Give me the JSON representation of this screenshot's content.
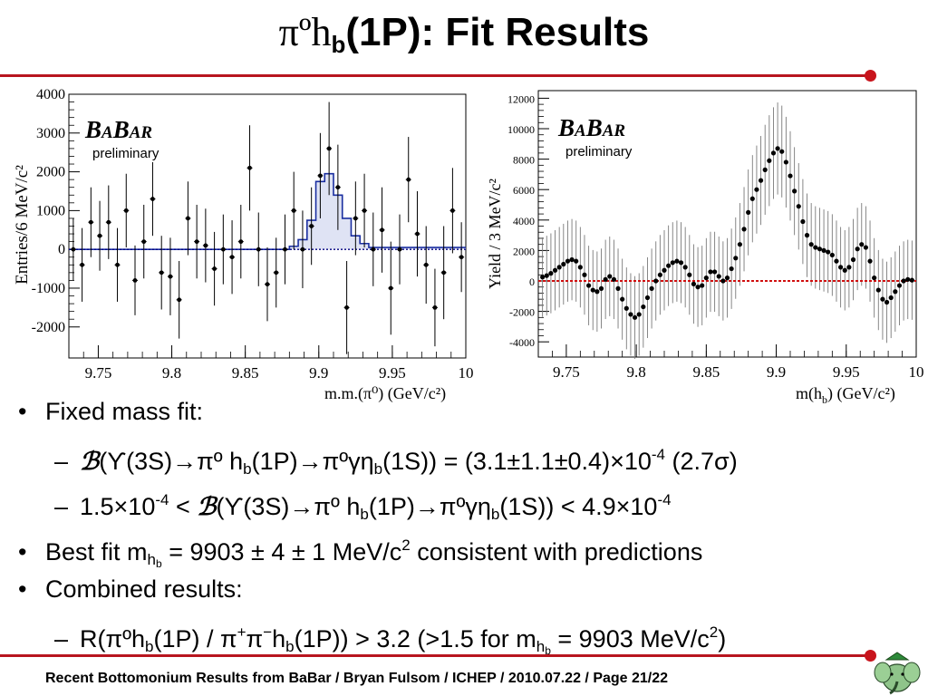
{
  "slide": {
    "title_prefix": "πºh",
    "title_sub": "b",
    "title_suffix": "(1P): Fit Results",
    "footer": "Recent Bottomonium Results from BaBar /  Bryan Fulsom  /  ICHEP  /  2010.07.22  /  Page 21/22",
    "accent_color": "#b8151e"
  },
  "bullets": [
    {
      "level": 1,
      "marker": "•",
      "text": "Fixed mass fit:"
    },
    {
      "level": 2,
      "marker": "–",
      "t1": "(ϒ(3S)",
      "arrow1": "→",
      "t2": "πº h",
      "s1": "b",
      "t3": "(1P)",
      "arrow2": "→",
      "t4": "πºγη",
      "s2": "b",
      "t5": "(1S)) = (3.1±1.1±0.4)×10",
      "sup1": "-4",
      "t6": " (2.7σ)",
      "brand": "ℬ"
    },
    {
      "level": 2,
      "marker": "–",
      "t1": "1.5×10",
      "sup1": "-4",
      "t2": " < ",
      "brand": "ℬ",
      "t3": "(ϒ(3S)",
      "arrow1": "→",
      "t4": "πº h",
      "s1": "b",
      "t5": "(1P)",
      "arrow2": "→",
      "t6": "πºγη",
      "s2": "b",
      "t7": "(1S)) < 4.9×10",
      "sup2": "-4"
    },
    {
      "level": 1,
      "marker": "•",
      "t1": "Best fit m",
      "s1": "h",
      "s1b": "b",
      "t2": " = 9903 ± 4 ± 1 MeV/c",
      "sup1": "2",
      "t3": " consistent with predictions"
    },
    {
      "level": 1,
      "marker": "•",
      "text": "Combined results:"
    },
    {
      "level": 2,
      "marker": "–",
      "t1": "R(πºh",
      "s1": "b",
      "t2": "(1P) / π",
      "sup1": "+",
      "t3": "π",
      "sup2": "−",
      "t4": "h",
      "s2": "b",
      "t5": "(1P)) > 3.2   (>1.5 for m",
      "s3": "h",
      "s3b": "b",
      "t6": " = 9903 MeV/c",
      "sup3": "2",
      "t7": ")"
    }
  ],
  "chart_data": [
    {
      "type": "scatter",
      "name": "left",
      "brand": "BABAR",
      "brand_sub": "preliminary",
      "xlabel": "m.m.(π⁰)  (GeV/c²)",
      "ylabel": "Entries/6 MeV/c²",
      "xlim": [
        9.73,
        10.0
      ],
      "ylim": [
        -2800,
        4000
      ],
      "xticks": [
        9.75,
        9.8,
        9.85,
        9.9,
        9.95,
        10
      ],
      "xtick_labels": [
        "9.75",
        "9.8",
        "9.85",
        "9.9",
        "9.95",
        "10"
      ],
      "yticks": [
        -2000,
        -1000,
        0,
        1000,
        2000,
        3000,
        4000
      ],
      "ytick_labels": [
        "-2000",
        "-1000",
        "0",
        "1000",
        "2000",
        "3000",
        "4000"
      ],
      "points": [
        {
          "x": 9.733,
          "y": 0,
          "err": 800
        },
        {
          "x": 9.739,
          "y": -400,
          "err": 950
        },
        {
          "x": 9.745,
          "y": 700,
          "err": 900
        },
        {
          "x": 9.751,
          "y": 350,
          "err": 900
        },
        {
          "x": 9.757,
          "y": 700,
          "err": 950
        },
        {
          "x": 9.763,
          "y": -400,
          "err": 950
        },
        {
          "x": 9.769,
          "y": 1000,
          "err": 950
        },
        {
          "x": 9.775,
          "y": -800,
          "err": 900
        },
        {
          "x": 9.781,
          "y": 200,
          "err": 950
        },
        {
          "x": 9.787,
          "y": 1300,
          "err": 950
        },
        {
          "x": 9.793,
          "y": -600,
          "err": 950
        },
        {
          "x": 9.799,
          "y": -700,
          "err": 1000
        },
        {
          "x": 9.805,
          "y": -1300,
          "err": 1000
        },
        {
          "x": 9.811,
          "y": 800,
          "err": 950
        },
        {
          "x": 9.817,
          "y": 200,
          "err": 950
        },
        {
          "x": 9.823,
          "y": 100,
          "err": 950
        },
        {
          "x": 9.829,
          "y": -500,
          "err": 950
        },
        {
          "x": 9.835,
          "y": 0,
          "err": 900
        },
        {
          "x": 9.841,
          "y": -200,
          "err": 950
        },
        {
          "x": 9.847,
          "y": 200,
          "err": 950
        },
        {
          "x": 9.853,
          "y": 2100,
          "err": 1100
        },
        {
          "x": 9.859,
          "y": 0,
          "err": 950
        },
        {
          "x": 9.865,
          "y": -900,
          "err": 950
        },
        {
          "x": 9.871,
          "y": -600,
          "err": 900
        },
        {
          "x": 9.877,
          "y": 0,
          "err": 900
        },
        {
          "x": 9.883,
          "y": 1000,
          "err": 1000
        },
        {
          "x": 9.889,
          "y": 0,
          "err": 1000
        },
        {
          "x": 9.895,
          "y": 600,
          "err": 1000
        },
        {
          "x": 9.901,
          "y": 1900,
          "err": 1100
        },
        {
          "x": 9.907,
          "y": 2600,
          "err": 1200
        },
        {
          "x": 9.913,
          "y": 1600,
          "err": 1100
        },
        {
          "x": 9.919,
          "y": -1500,
          "err": 1200
        },
        {
          "x": 9.925,
          "y": 800,
          "err": 950
        },
        {
          "x": 9.931,
          "y": 1000,
          "err": 950
        },
        {
          "x": 9.937,
          "y": 0,
          "err": 950
        },
        {
          "x": 9.943,
          "y": 500,
          "err": 1100
        },
        {
          "x": 9.949,
          "y": -1000,
          "err": 1200
        },
        {
          "x": 9.955,
          "y": 0,
          "err": 900
        },
        {
          "x": 9.961,
          "y": 1800,
          "err": 1100
        },
        {
          "x": 9.967,
          "y": 400,
          "err": 1100
        },
        {
          "x": 9.973,
          "y": -400,
          "err": 1000
        },
        {
          "x": 9.979,
          "y": -1500,
          "err": 1000
        },
        {
          "x": 9.985,
          "y": -600,
          "err": 1200
        },
        {
          "x": 9.991,
          "y": 1000,
          "err": 1100
        },
        {
          "x": 9.997,
          "y": -200,
          "err": 900
        }
      ],
      "fit_histogram": {
        "edges": [
          9.73,
          9.88,
          9.886,
          9.892,
          9.898,
          9.904,
          9.91,
          9.916,
          9.922,
          9.928,
          9.934,
          10.0
        ],
        "values": [
          0,
          80,
          250,
          750,
          1750,
          1950,
          1400,
          800,
          350,
          150,
          50
        ]
      },
      "baseline": 0,
      "baseline_color": "#000080",
      "fit_color": "#1a2ea0"
    },
    {
      "type": "scatter",
      "name": "right",
      "brand": "BABAR",
      "brand_sub": "preliminary",
      "xlabel": "m(hb)  (GeV/c²)",
      "xlabel_main": "m(h",
      "xlabel_sub": "b",
      "xlabel_tail": ")  (GeV/c²)",
      "ylabel": "Yield / 3 MeV/c²",
      "xlim": [
        9.73,
        10.0
      ],
      "ylim": [
        -5000,
        12500
      ],
      "xticks": [
        9.75,
        9.8,
        9.85,
        9.9,
        9.95,
        10
      ],
      "xtick_labels": [
        "9.75",
        "9.8",
        "9.85",
        "9.9",
        "9.95",
        "10"
      ],
      "yticks": [
        -4000,
        -2000,
        0,
        2000,
        4000,
        6000,
        8000,
        10000,
        12000
      ],
      "ytick_labels": [
        "-4000",
        "-2000",
        "0",
        "2000",
        "4000",
        "6000",
        "8000",
        "10000",
        "12000"
      ],
      "points": [
        {
          "x": 9.733,
          "y": 250
        },
        {
          "x": 9.736,
          "y": 350
        },
        {
          "x": 9.739,
          "y": 500
        },
        {
          "x": 9.742,
          "y": 700
        },
        {
          "x": 9.745,
          "y": 900
        },
        {
          "x": 9.748,
          "y": 1100
        },
        {
          "x": 9.751,
          "y": 1300
        },
        {
          "x": 9.754,
          "y": 1400
        },
        {
          "x": 9.757,
          "y": 1300
        },
        {
          "x": 9.76,
          "y": 900
        },
        {
          "x": 9.763,
          "y": 400
        },
        {
          "x": 9.766,
          "y": -300
        },
        {
          "x": 9.769,
          "y": -600
        },
        {
          "x": 9.772,
          "y": -700
        },
        {
          "x": 9.775,
          "y": -500
        },
        {
          "x": 9.778,
          "y": 100
        },
        {
          "x": 9.781,
          "y": 300
        },
        {
          "x": 9.784,
          "y": 100
        },
        {
          "x": 9.787,
          "y": -500
        },
        {
          "x": 9.79,
          "y": -1200
        },
        {
          "x": 9.793,
          "y": -1800
        },
        {
          "x": 9.796,
          "y": -2200
        },
        {
          "x": 9.799,
          "y": -2400
        },
        {
          "x": 9.802,
          "y": -2200
        },
        {
          "x": 9.805,
          "y": -1700
        },
        {
          "x": 9.808,
          "y": -1100
        },
        {
          "x": 9.811,
          "y": -500
        },
        {
          "x": 9.814,
          "y": 0
        },
        {
          "x": 9.817,
          "y": 400
        },
        {
          "x": 9.82,
          "y": 700
        },
        {
          "x": 9.823,
          "y": 1000
        },
        {
          "x": 9.826,
          "y": 1200
        },
        {
          "x": 9.829,
          "y": 1300
        },
        {
          "x": 9.832,
          "y": 1200
        },
        {
          "x": 9.835,
          "y": 900
        },
        {
          "x": 9.838,
          "y": 400
        },
        {
          "x": 9.841,
          "y": -200
        },
        {
          "x": 9.844,
          "y": -400
        },
        {
          "x": 9.847,
          "y": -300
        },
        {
          "x": 9.85,
          "y": 200
        },
        {
          "x": 9.853,
          "y": 600
        },
        {
          "x": 9.856,
          "y": 600
        },
        {
          "x": 9.859,
          "y": 300
        },
        {
          "x": 9.862,
          "y": 0
        },
        {
          "x": 9.865,
          "y": 200
        },
        {
          "x": 9.868,
          "y": 800
        },
        {
          "x": 9.871,
          "y": 1500
        },
        {
          "x": 9.874,
          "y": 2400
        },
        {
          "x": 9.877,
          "y": 3400
        },
        {
          "x": 9.88,
          "y": 4500
        },
        {
          "x": 9.883,
          "y": 5400
        },
        {
          "x": 9.886,
          "y": 6000
        },
        {
          "x": 9.889,
          "y": 6600
        },
        {
          "x": 9.892,
          "y": 7300
        },
        {
          "x": 9.895,
          "y": 7900
        },
        {
          "x": 9.898,
          "y": 8400
        },
        {
          "x": 9.901,
          "y": 8700
        },
        {
          "x": 9.904,
          "y": 8500
        },
        {
          "x": 9.907,
          "y": 7800
        },
        {
          "x": 9.91,
          "y": 6900
        },
        {
          "x": 9.913,
          "y": 5900
        },
        {
          "x": 9.916,
          "y": 4900
        },
        {
          "x": 9.919,
          "y": 3900
        },
        {
          "x": 9.922,
          "y": 3000
        },
        {
          "x": 9.925,
          "y": 2400
        },
        {
          "x": 9.928,
          "y": 2200
        },
        {
          "x": 9.931,
          "y": 2100
        },
        {
          "x": 9.934,
          "y": 2000
        },
        {
          "x": 9.937,
          "y": 1900
        },
        {
          "x": 9.94,
          "y": 1700
        },
        {
          "x": 9.943,
          "y": 1300
        },
        {
          "x": 9.946,
          "y": 900
        },
        {
          "x": 9.949,
          "y": 700
        },
        {
          "x": 9.952,
          "y": 900
        },
        {
          "x": 9.955,
          "y": 1400
        },
        {
          "x": 9.958,
          "y": 2100
        },
        {
          "x": 9.961,
          "y": 2400
        },
        {
          "x": 9.964,
          "y": 2200
        },
        {
          "x": 9.967,
          "y": 1300
        },
        {
          "x": 9.97,
          "y": 200
        },
        {
          "x": 9.973,
          "y": -600
        },
        {
          "x": 9.976,
          "y": -1200
        },
        {
          "x": 9.979,
          "y": -1400
        },
        {
          "x": 9.982,
          "y": -1100
        },
        {
          "x": 9.985,
          "y": -700
        },
        {
          "x": 9.988,
          "y": -300
        },
        {
          "x": 9.991,
          "y": 0
        },
        {
          "x": 9.994,
          "y": 100
        },
        {
          "x": 9.997,
          "y": 50
        }
      ],
      "error_scale": 2600,
      "baseline": 0,
      "baseline_color": "#d01010"
    }
  ]
}
